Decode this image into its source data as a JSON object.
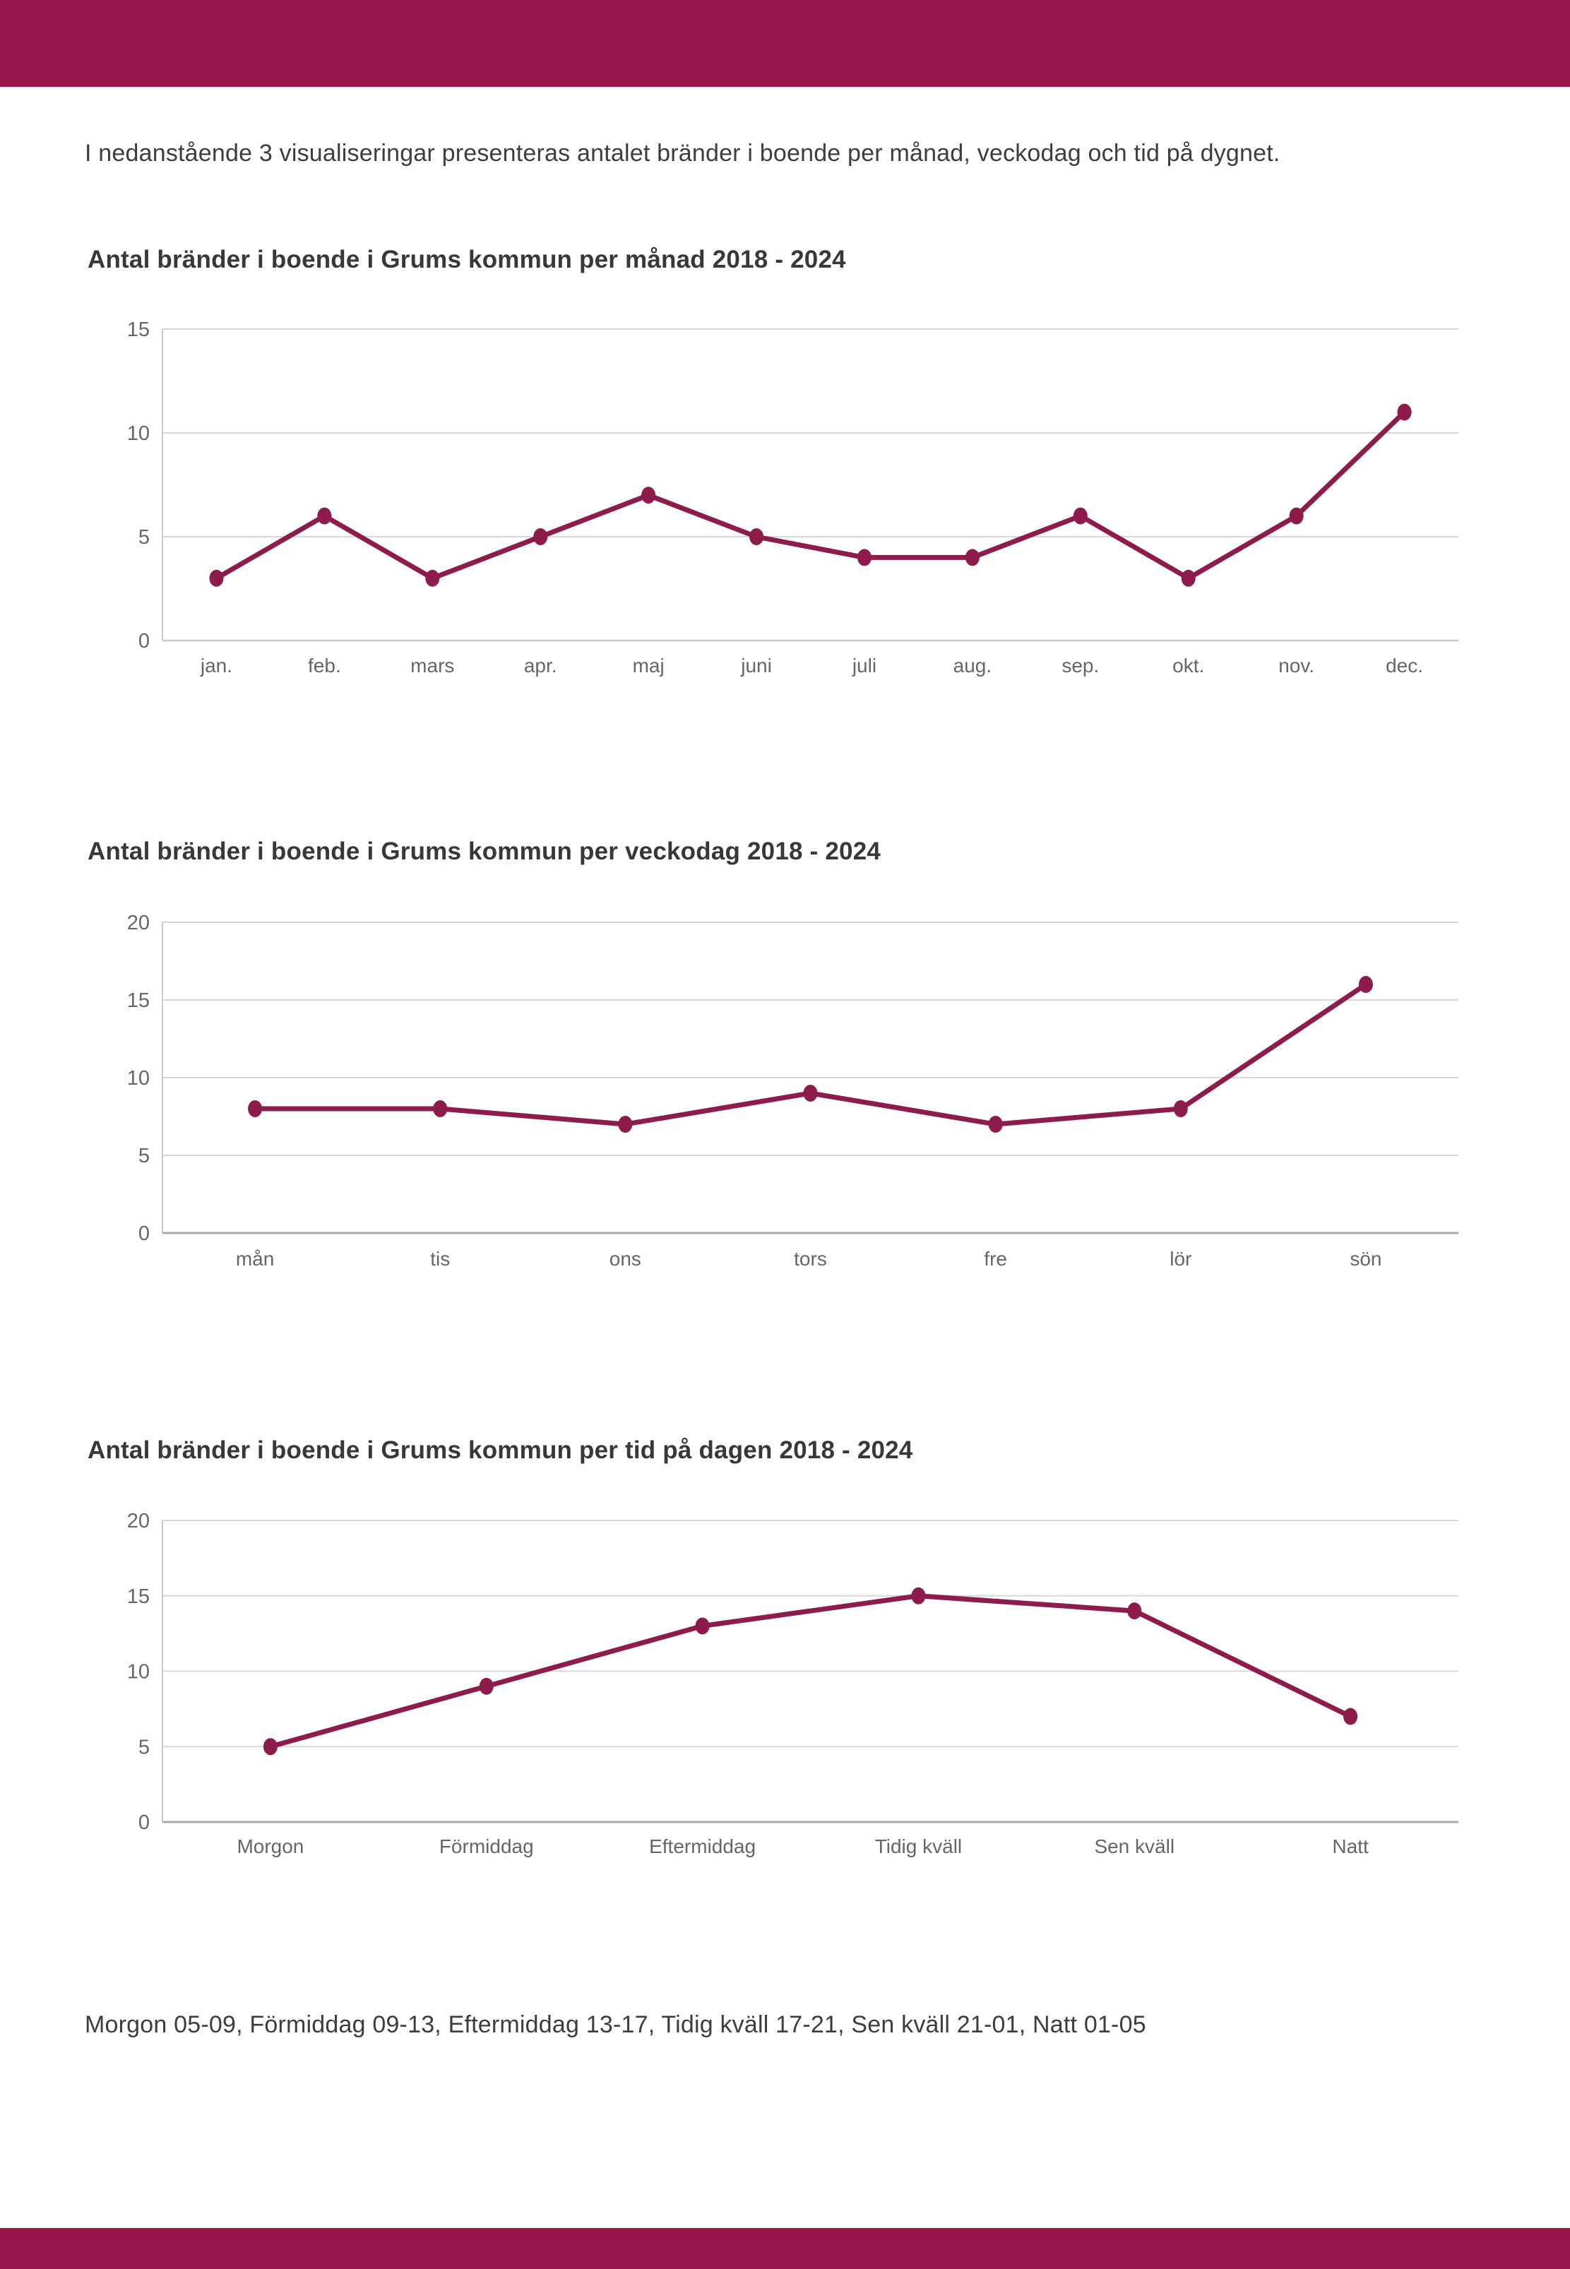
{
  "page": {
    "intro": "I nedanstående 3 visualiseringar presenteras antalet bränder i boende per månad, veckodag och tid på dygnet.",
    "footnote": "Morgon 05-09, Förmiddag 09-13, Eftermiddag 13-17, Tidig kväll 17-21, Sen kväll 21-01, Natt 01-05"
  },
  "colors": {
    "accent_bar": "#99164C",
    "line": "#8D1B4B",
    "grid": "#d8d8d8",
    "axis_light": "#c9c9c9",
    "axis_dark": "#ababab",
    "tick_text": "#666666",
    "body_text": "#3d3d3d"
  },
  "chart_data": [
    {
      "type": "line",
      "title": "Antal bränder i boende i Grums kommun per månad 2018 - 2024",
      "categories": [
        "jan.",
        "feb.",
        "mars",
        "apr.",
        "maj",
        "juni",
        "juli",
        "aug.",
        "sep.",
        "okt.",
        "nov.",
        "dec."
      ],
      "values": [
        3,
        6,
        3,
        5,
        7,
        5,
        4,
        4,
        6,
        3,
        6,
        11
      ],
      "xlabel": "",
      "ylabel": "",
      "ylim": [
        0,
        15
      ],
      "yticks": [
        0,
        5,
        10,
        15
      ],
      "grid": true,
      "legend": false
    },
    {
      "type": "line",
      "title": "Antal bränder i boende i Grums kommun per veckodag 2018 - 2024",
      "categories": [
        "mån",
        "tis",
        "ons",
        "tors",
        "fre",
        "lör",
        "sön"
      ],
      "values": [
        8,
        8,
        7,
        9,
        7,
        8,
        16
      ],
      "xlabel": "",
      "ylabel": "",
      "ylim": [
        0,
        20
      ],
      "yticks": [
        0,
        5,
        10,
        15,
        20
      ],
      "grid": true,
      "legend": false
    },
    {
      "type": "line",
      "title": "Antal bränder i boende i Grums kommun per tid på dagen 2018 - 2024",
      "categories": [
        "Morgon",
        "Förmiddag",
        "Eftermiddag",
        "Tidig kväll",
        "Sen kväll",
        "Natt"
      ],
      "values": [
        5,
        9,
        13,
        15,
        14,
        7
      ],
      "xlabel": "",
      "ylabel": "",
      "ylim": [
        0,
        20
      ],
      "yticks": [
        0,
        5,
        10,
        15,
        20
      ],
      "grid": true,
      "legend": false
    }
  ]
}
